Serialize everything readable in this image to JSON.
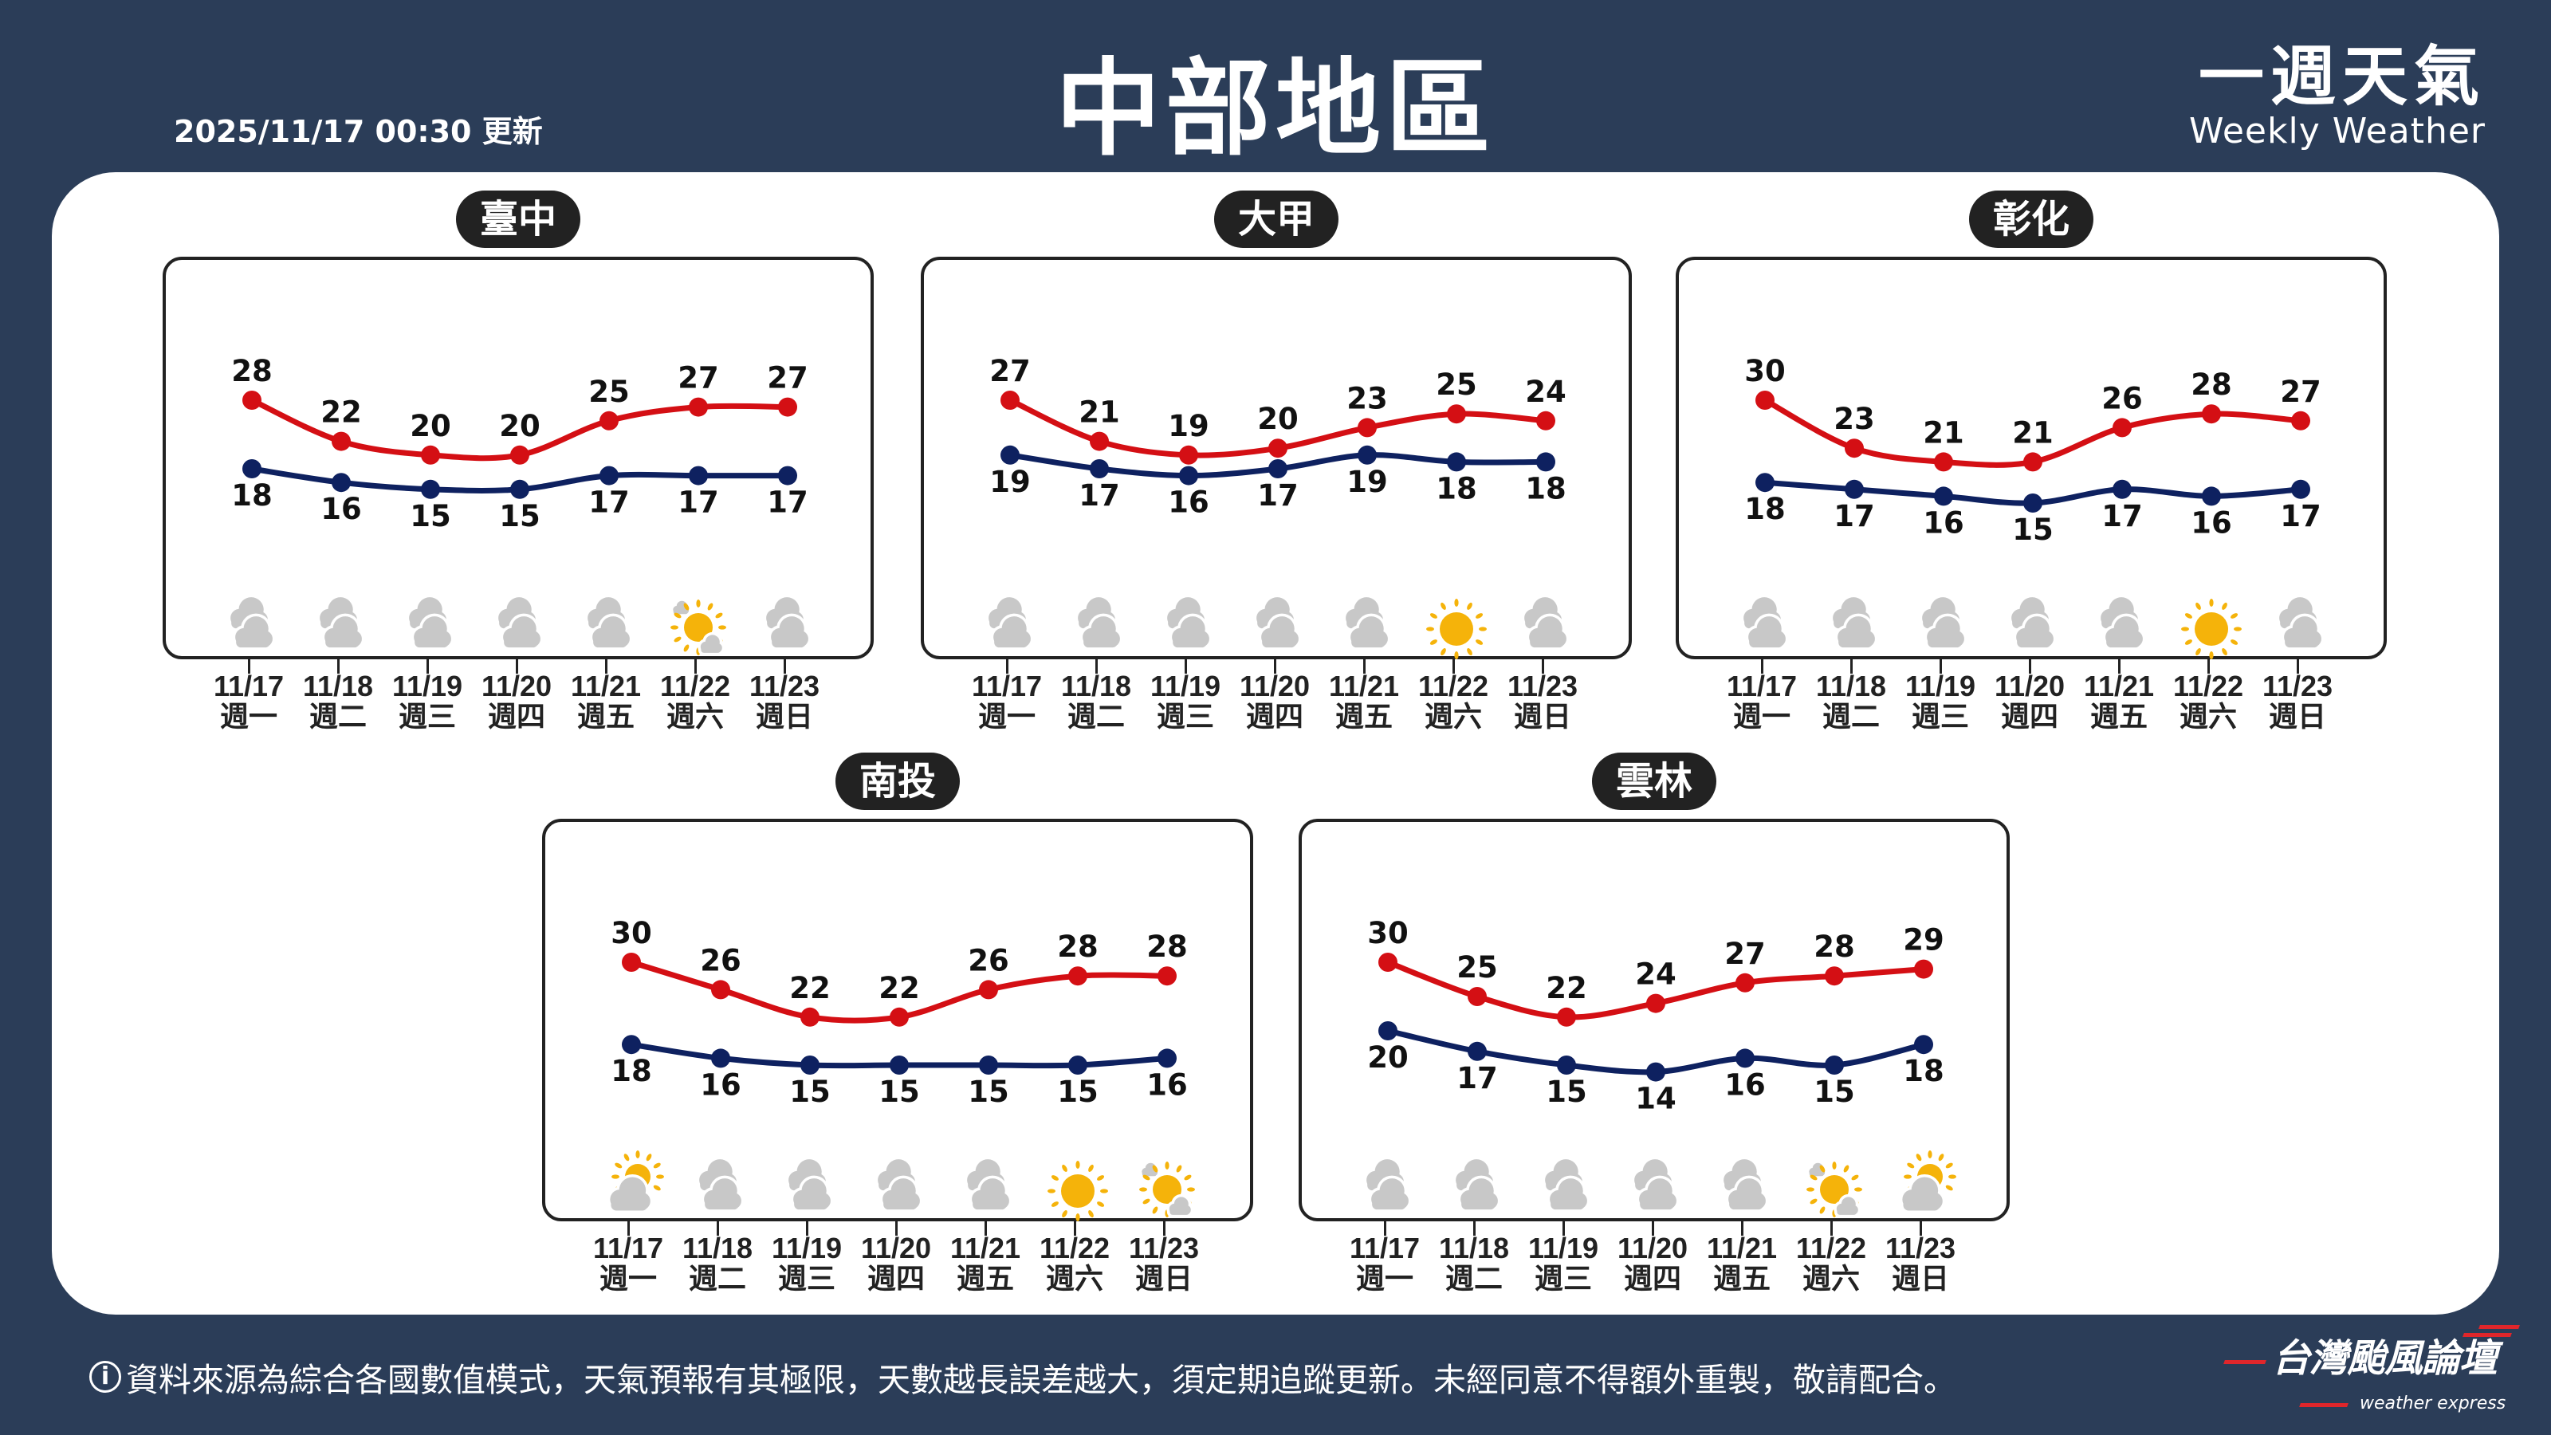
{
  "header": {
    "timestamp": "2025/11/17 00:30 更新",
    "title": "中部地區",
    "brand_zh": "一週天氣",
    "brand_en": "Weekly Weather"
  },
  "colors": {
    "background": "#2b3d58",
    "high": "#d40f14",
    "low": "#0e2160",
    "sun": "#f5b30a",
    "cloud": "#c8c8c8"
  },
  "dates": [
    "11/17",
    "11/18",
    "11/19",
    "11/20",
    "11/21",
    "11/22",
    "11/23"
  ],
  "weekdays": [
    "週一",
    "週二",
    "週三",
    "週四",
    "週五",
    "週六",
    "週日"
  ],
  "regions": [
    {
      "name": "臺中",
      "high": [
        28,
        22,
        20,
        20,
        25,
        27,
        27
      ],
      "low": [
        18,
        16,
        15,
        15,
        17,
        17,
        17
      ],
      "weather": [
        "cloudy",
        "cloudy",
        "cloudy",
        "cloudy",
        "cloudy",
        "sunny-few-clouds",
        "cloudy"
      ]
    },
    {
      "name": "大甲",
      "high": [
        27,
        21,
        19,
        20,
        23,
        25,
        24
      ],
      "low": [
        19,
        17,
        16,
        17,
        19,
        18,
        18
      ],
      "weather": [
        "cloudy",
        "cloudy",
        "cloudy",
        "cloudy",
        "cloudy",
        "sunny",
        "cloudy"
      ]
    },
    {
      "name": "彰化",
      "high": [
        30,
        23,
        21,
        21,
        26,
        28,
        27
      ],
      "low": [
        18,
        17,
        16,
        15,
        17,
        16,
        17
      ],
      "weather": [
        "cloudy",
        "cloudy",
        "cloudy",
        "cloudy",
        "cloudy",
        "sunny",
        "cloudy"
      ]
    },
    {
      "name": "南投",
      "high": [
        30,
        26,
        22,
        22,
        26,
        28,
        28
      ],
      "low": [
        18,
        16,
        15,
        15,
        15,
        15,
        16
      ],
      "weather": [
        "partly-cloudy",
        "cloudy",
        "cloudy",
        "cloudy",
        "cloudy",
        "sunny",
        "sunny-few-clouds"
      ]
    },
    {
      "name": "雲林",
      "high": [
        30,
        25,
        22,
        24,
        27,
        28,
        29
      ],
      "low": [
        20,
        17,
        15,
        14,
        16,
        15,
        18
      ],
      "weather": [
        "cloudy",
        "cloudy",
        "cloudy",
        "cloudy",
        "cloudy",
        "sunny-few-clouds",
        "partly-cloudy"
      ]
    }
  ],
  "footer": {
    "info_icon": "i",
    "disclaimer": "資料來源為綜合各國數值模式，天氣預報有其極限，天數越長誤差越大，須定期追蹤更新。未經同意不得額外重製，敬請配合。",
    "logo_zh": "台灣颱風論壇",
    "logo_en": "weather express"
  }
}
